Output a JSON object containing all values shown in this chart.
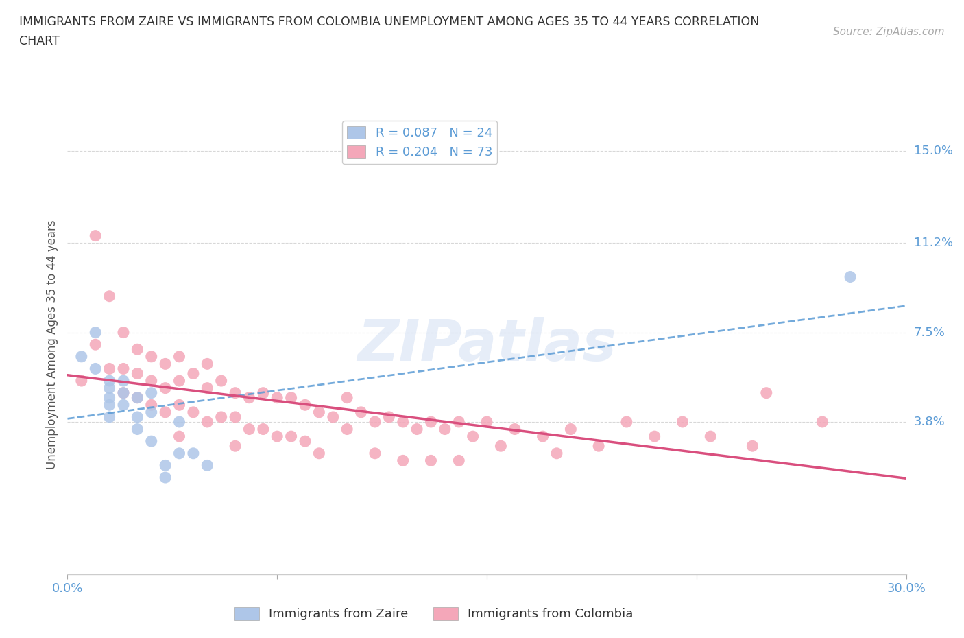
{
  "title_line1": "IMMIGRANTS FROM ZAIRE VS IMMIGRANTS FROM COLOMBIA UNEMPLOYMENT AMONG AGES 35 TO 44 YEARS CORRELATION",
  "title_line2": "CHART",
  "source": "Source: ZipAtlas.com",
  "ylabel": "Unemployment Among Ages 35 to 44 years",
  "xlim": [
    0.0,
    0.3
  ],
  "ylim": [
    -0.025,
    0.165
  ],
  "yticks": [
    0.038,
    0.075,
    0.112,
    0.15
  ],
  "ytick_labels": [
    "3.8%",
    "7.5%",
    "11.2%",
    "15.0%"
  ],
  "xticks": [
    0.0,
    0.075,
    0.15,
    0.225,
    0.3
  ],
  "xtick_labels": [
    "0.0%",
    "",
    "",
    "",
    "30.0%"
  ],
  "grid_color": "#d8d8d8",
  "background_color": "#ffffff",
  "zaire_color": "#aec6e8",
  "colombia_color": "#f4a7b9",
  "zaire_R": 0.087,
  "zaire_N": 24,
  "colombia_R": 0.204,
  "colombia_N": 73,
  "zaire_line_color": "#5b9bd5",
  "colombia_line_color": "#d94f7e",
  "watermark": "ZIPatlas",
  "zaire_x": [
    0.005,
    0.01,
    0.01,
    0.015,
    0.015,
    0.015,
    0.015,
    0.015,
    0.02,
    0.02,
    0.02,
    0.025,
    0.025,
    0.025,
    0.03,
    0.03,
    0.03,
    0.035,
    0.035,
    0.04,
    0.04,
    0.045,
    0.05,
    0.28
  ],
  "zaire_y": [
    0.065,
    0.075,
    0.06,
    0.055,
    0.052,
    0.048,
    0.045,
    0.04,
    0.055,
    0.05,
    0.045,
    0.048,
    0.04,
    0.035,
    0.05,
    0.042,
    0.03,
    0.02,
    0.015,
    0.038,
    0.025,
    0.025,
    0.02,
    0.098
  ],
  "colombia_x": [
    0.005,
    0.01,
    0.01,
    0.015,
    0.015,
    0.02,
    0.02,
    0.02,
    0.025,
    0.025,
    0.025,
    0.03,
    0.03,
    0.03,
    0.035,
    0.035,
    0.035,
    0.04,
    0.04,
    0.04,
    0.04,
    0.045,
    0.045,
    0.05,
    0.05,
    0.05,
    0.055,
    0.055,
    0.06,
    0.06,
    0.06,
    0.065,
    0.065,
    0.07,
    0.07,
    0.075,
    0.075,
    0.08,
    0.08,
    0.085,
    0.085,
    0.09,
    0.09,
    0.095,
    0.1,
    0.1,
    0.105,
    0.11,
    0.11,
    0.115,
    0.12,
    0.12,
    0.125,
    0.13,
    0.13,
    0.135,
    0.14,
    0.14,
    0.145,
    0.15,
    0.155,
    0.16,
    0.17,
    0.175,
    0.18,
    0.19,
    0.2,
    0.21,
    0.22,
    0.23,
    0.245,
    0.25,
    0.27
  ],
  "colombia_y": [
    0.055,
    0.115,
    0.07,
    0.09,
    0.06,
    0.075,
    0.06,
    0.05,
    0.068,
    0.058,
    0.048,
    0.065,
    0.055,
    0.045,
    0.062,
    0.052,
    0.042,
    0.065,
    0.055,
    0.045,
    0.032,
    0.058,
    0.042,
    0.062,
    0.052,
    0.038,
    0.055,
    0.04,
    0.05,
    0.04,
    0.028,
    0.048,
    0.035,
    0.05,
    0.035,
    0.048,
    0.032,
    0.048,
    0.032,
    0.045,
    0.03,
    0.042,
    0.025,
    0.04,
    0.048,
    0.035,
    0.042,
    0.038,
    0.025,
    0.04,
    0.038,
    0.022,
    0.035,
    0.038,
    0.022,
    0.035,
    0.038,
    0.022,
    0.032,
    0.038,
    0.028,
    0.035,
    0.032,
    0.025,
    0.035,
    0.028,
    0.038,
    0.032,
    0.038,
    0.032,
    0.028,
    0.05,
    0.038
  ]
}
